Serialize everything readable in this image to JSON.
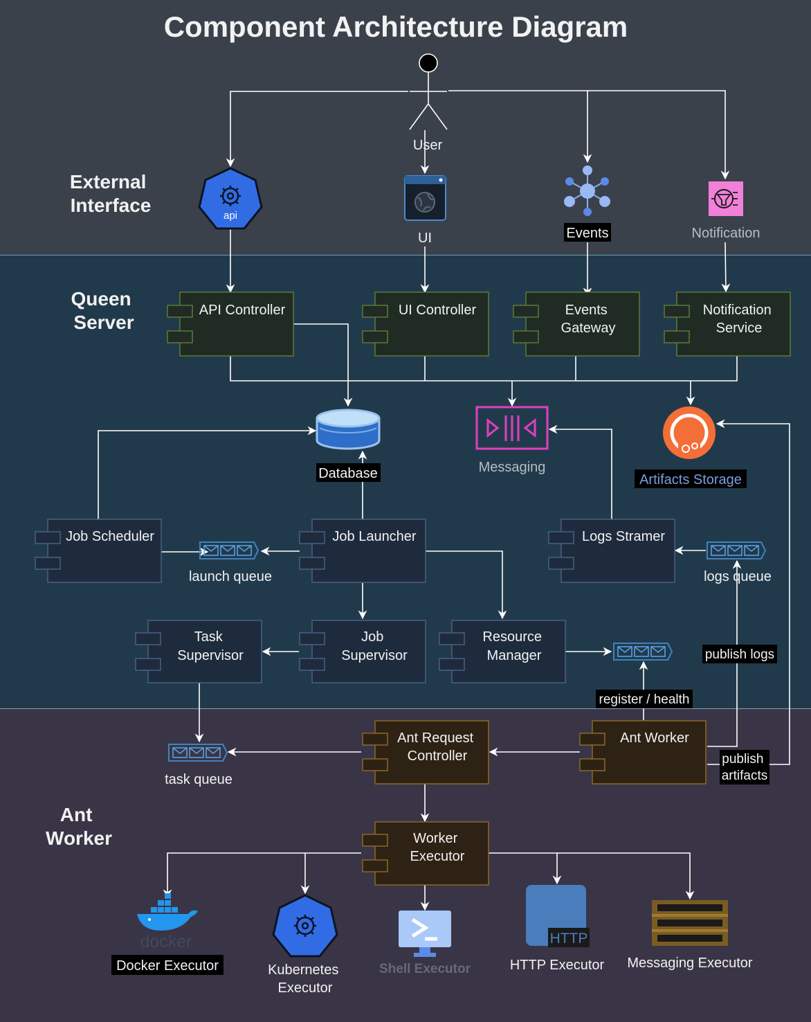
{
  "title": "Component Architecture Diagram",
  "sections": {
    "external": [
      "External",
      "Interface"
    ],
    "queen": [
      "Queen",
      "Server"
    ],
    "ant": [
      "Ant",
      "Worker"
    ]
  },
  "actor": "User",
  "external_nodes": {
    "api_icon_text": "api",
    "ui": "UI",
    "events": "Events",
    "notification": "Notification"
  },
  "queen_components": {
    "api_controller": [
      "API Controller"
    ],
    "ui_controller": [
      "UI Controller"
    ],
    "events_gateway": [
      "Events",
      "Gateway"
    ],
    "notification_service": [
      "Notification",
      "Service"
    ],
    "job_scheduler": [
      "Job Scheduler"
    ],
    "job_launcher": [
      "Job Launcher"
    ],
    "logs_streamer": [
      "Logs Stramer"
    ],
    "task_supervisor": [
      "Task",
      "Supervisor"
    ],
    "job_supervisor": [
      "Job",
      "Supervisor"
    ],
    "resource_manager": [
      "Resource",
      "Manager"
    ]
  },
  "stores": {
    "database": "Database",
    "messaging": "Messaging",
    "artifacts": "Artifacts Storage"
  },
  "queues": {
    "launch": "launch queue",
    "logs": "logs queue",
    "task": "task queue"
  },
  "edge_labels": {
    "register": "register / health",
    "publish_logs": "publish logs",
    "publish_artifacts": [
      "publish",
      "artifacts"
    ]
  },
  "ant_components": {
    "ant_request_controller": [
      "Ant Request",
      "Controller"
    ],
    "ant_worker": [
      "Ant Worker"
    ],
    "worker_executor": [
      "Worker",
      "Executor"
    ]
  },
  "executors": {
    "docker_logo": "docker",
    "docker": "Docker Executor",
    "kubernetes": [
      "Kubernetes",
      "Executor"
    ],
    "shell": "Shell Executor",
    "http_badge": "HTTP",
    "http": "HTTP Executor",
    "messaging": "Messaging Executor"
  },
  "colors": {
    "external_bg": "#3a414b",
    "queen_bg": "#213a4b",
    "ant_bg": "#393546",
    "queen_top_fill": "#202b24",
    "queen_top_stroke": "#5a7a3a",
    "queen_fill": "#1e2b3d",
    "queen_stroke": "#4a5f84",
    "ant_fill": "#2e2214",
    "ant_stroke": "#8a6a28",
    "kube_blue": "#326ce5",
    "artifact_orange": "#f46e38",
    "messaging_pink": "#e040c0",
    "notification_pink": "#f080d8"
  }
}
